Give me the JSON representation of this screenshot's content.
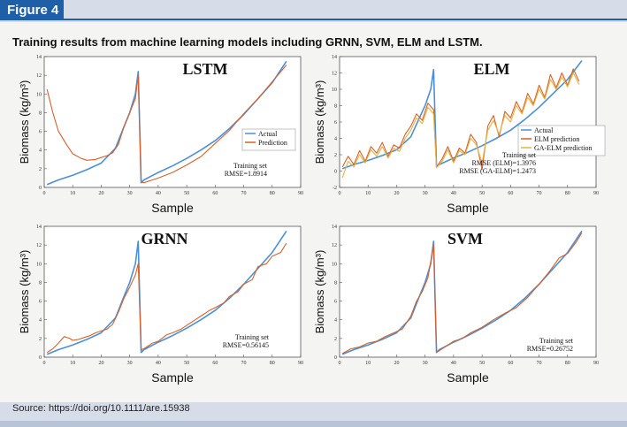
{
  "figure_label": "Figure 4",
  "caption": "Training results from machine learning models including GRNN, SVM, ELM and LSTM.",
  "source": "Source: https://doi.org/10.1111/are.15938",
  "colors": {
    "actual": "#4a90d9",
    "prediction": "#d8602a",
    "ga_elm": "#e8b23a",
    "accent": "#1f5fa8"
  },
  "chart_data": [
    {
      "type": "line",
      "title": "LSTM",
      "xlabel": "Sample",
      "ylabel": "Biomass (kg/m³)",
      "xlim": [
        0,
        90
      ],
      "ylim": [
        0,
        14
      ],
      "xticks": [
        "0",
        "10",
        "20",
        "30",
        "40",
        "50",
        "60",
        "70",
        "80",
        "90"
      ],
      "yticks": [
        "0",
        "2",
        "4",
        "6",
        "8",
        "10",
        "12",
        "14"
      ],
      "legend": [
        "Actual",
        "Prediction"
      ],
      "annotation": [
        "Training set",
        "RMSE=1.8914"
      ],
      "series": [
        {
          "name": "Actual",
          "x": [
            1,
            5,
            10,
            15,
            20,
            25,
            28,
            30,
            32,
            33,
            34,
            35,
            40,
            45,
            50,
            55,
            60,
            65,
            70,
            75,
            80,
            85
          ],
          "y": [
            0.3,
            0.8,
            1.3,
            1.9,
            2.6,
            4.2,
            6.5,
            8.0,
            10.0,
            12.4,
            0.5,
            0.8,
            1.6,
            2.3,
            3.1,
            4.0,
            5.0,
            6.3,
            7.8,
            9.5,
            11.2,
            13.5
          ]
        },
        {
          "name": "Prediction",
          "x": [
            1,
            3,
            5,
            8,
            10,
            13,
            15,
            18,
            20,
            22,
            24,
            26,
            28,
            30,
            32,
            33,
            34,
            35,
            38,
            40,
            45,
            50,
            55,
            60,
            65,
            70,
            75,
            80,
            85
          ],
          "y": [
            10.5,
            8.0,
            6.0,
            4.5,
            3.6,
            3.1,
            2.9,
            3.0,
            3.2,
            3.4,
            3.7,
            4.6,
            6.5,
            8.0,
            9.5,
            12.0,
            0.6,
            0.5,
            0.8,
            1.0,
            1.6,
            2.4,
            3.3,
            4.7,
            6.1,
            7.9,
            9.5,
            11.3,
            13.1
          ]
        }
      ]
    },
    {
      "type": "line",
      "title": "ELM",
      "xlabel": "Sample",
      "ylabel": "Biomass (kg/m³)",
      "xlim": [
        0,
        90
      ],
      "ylim": [
        -2,
        14
      ],
      "xticks": [
        "0",
        "10",
        "20",
        "30",
        "40",
        "50",
        "60",
        "70",
        "80",
        "90"
      ],
      "yticks": [
        "-2",
        "0",
        "2",
        "4",
        "6",
        "8",
        "10",
        "12",
        "14"
      ],
      "legend": [
        "Actual",
        "ELM prediction",
        "GA-ELM prediction"
      ],
      "annotation": [
        "Training set",
        "RMSE (ELM)=1.3976",
        "RMSE (GA-ELM)=1.2473"
      ],
      "series": [
        {
          "name": "Actual",
          "x": [
            1,
            5,
            10,
            15,
            20,
            25,
            28,
            30,
            32,
            33,
            34,
            35,
            40,
            45,
            50,
            55,
            60,
            65,
            70,
            75,
            80,
            85
          ],
          "y": [
            0.3,
            0.8,
            1.3,
            1.9,
            2.6,
            4.2,
            6.5,
            8.0,
            10.0,
            12.4,
            0.5,
            0.8,
            1.6,
            2.3,
            3.1,
            4.0,
            5.0,
            6.3,
            7.8,
            9.5,
            11.2,
            13.5
          ]
        },
        {
          "name": "ELM prediction",
          "x": [
            1,
            3,
            5,
            7,
            9,
            11,
            13,
            15,
            17,
            19,
            21,
            23,
            25,
            27,
            29,
            31,
            33,
            34,
            36,
            38,
            40,
            42,
            44,
            46,
            48,
            50,
            52,
            54,
            56,
            58,
            60,
            62,
            64,
            66,
            68,
            70,
            72,
            74,
            76,
            78,
            80,
            82,
            84
          ],
          "y": [
            0.5,
            1.8,
            0.8,
            2.5,
            1.2,
            3.0,
            2.2,
            3.5,
            1.8,
            3.2,
            2.8,
            4.5,
            5.5,
            7.0,
            6.2,
            8.3,
            7.5,
            0.5,
            1.5,
            3.0,
            1.2,
            2.8,
            2.2,
            4.5,
            3.5,
            0.2,
            5.5,
            6.8,
            4.2,
            7.3,
            6.5,
            8.5,
            7.2,
            9.5,
            8.2,
            10.5,
            9.0,
            11.8,
            10.2,
            12.0,
            10.5,
            12.5,
            11.0
          ]
        },
        {
          "name": "GA-ELM prediction",
          "x": [
            1,
            3,
            5,
            7,
            9,
            11,
            13,
            15,
            17,
            19,
            21,
            23,
            25,
            27,
            29,
            31,
            33,
            34,
            36,
            38,
            40,
            42,
            44,
            46,
            48,
            50,
            52,
            54,
            56,
            58,
            60,
            62,
            64,
            66,
            68,
            70,
            72,
            74,
            76,
            78,
            80,
            82,
            84
          ],
          "y": [
            -0.8,
            1.2,
            0.5,
            2.0,
            1.0,
            2.6,
            1.8,
            3.0,
            1.6,
            2.8,
            2.4,
            4.0,
            5.0,
            6.5,
            5.8,
            7.8,
            7.0,
            0.4,
            1.2,
            2.6,
            1.0,
            2.5,
            2.0,
            4.0,
            3.2,
            1.0,
            5.0,
            6.2,
            4.5,
            6.8,
            6.0,
            8.0,
            7.0,
            9.0,
            8.0,
            10.0,
            8.8,
            11.2,
            10.0,
            11.5,
            10.3,
            12.0,
            10.6
          ]
        }
      ]
    },
    {
      "type": "line",
      "title": "GRNN",
      "xlabel": "Sample",
      "ylabel": "Biomass (kg/m³)",
      "xlim": [
        0,
        90
      ],
      "ylim": [
        0,
        14
      ],
      "xticks": [
        "0",
        "10",
        "20",
        "30",
        "40",
        "50",
        "60",
        "70",
        "80",
        "90"
      ],
      "yticks": [
        "0",
        "2",
        "4",
        "6",
        "8",
        "10",
        "12",
        "14"
      ],
      "annotation": [
        "Training set",
        "RMSE=0.56145"
      ],
      "series": [
        {
          "name": "Actual",
          "x": [
            1,
            5,
            10,
            15,
            20,
            25,
            28,
            30,
            32,
            33,
            34,
            35,
            40,
            45,
            50,
            55,
            60,
            65,
            70,
            75,
            80,
            85
          ],
          "y": [
            0.3,
            0.8,
            1.3,
            1.9,
            2.6,
            4.2,
            6.5,
            8.0,
            10.0,
            12.4,
            0.5,
            0.8,
            1.6,
            2.3,
            3.1,
            4.0,
            5.0,
            6.3,
            7.8,
            9.5,
            11.2,
            13.5
          ]
        },
        {
          "name": "Prediction",
          "x": [
            1,
            3,
            5,
            7,
            9,
            10,
            12,
            14,
            16,
            18,
            20,
            22,
            24,
            26,
            28,
            30,
            32,
            33,
            34,
            35,
            38,
            40,
            43,
            45,
            48,
            50,
            53,
            55,
            58,
            60,
            63,
            65,
            68,
            70,
            73,
            75,
            78,
            80,
            83,
            85
          ],
          "y": [
            0.5,
            0.9,
            1.5,
            2.2,
            2.0,
            1.8,
            1.9,
            2.1,
            2.3,
            2.6,
            2.8,
            3.0,
            3.5,
            4.8,
            6.3,
            7.5,
            8.8,
            10.0,
            0.8,
            0.9,
            1.5,
            1.7,
            2.4,
            2.6,
            3.0,
            3.4,
            4.0,
            4.4,
            5.0,
            5.3,
            5.8,
            6.5,
            7.0,
            7.8,
            8.3,
            9.7,
            10.0,
            10.8,
            11.2,
            12.2
          ]
        }
      ]
    },
    {
      "type": "line",
      "title": "SVM",
      "xlabel": "Sample",
      "ylabel": "Biomass (kg/m³)",
      "xlim": [
        0,
        90
      ],
      "ylim": [
        0,
        14
      ],
      "xticks": [
        "0",
        "10",
        "20",
        "30",
        "40",
        "50",
        "60",
        "70",
        "80",
        "90"
      ],
      "yticks": [
        "0",
        "2",
        "4",
        "6",
        "8",
        "10",
        "12",
        "14"
      ],
      "annotation": [
        "Training set",
        "RMSE=0.26752"
      ],
      "series": [
        {
          "name": "Actual",
          "x": [
            1,
            5,
            10,
            15,
            20,
            25,
            28,
            30,
            32,
            33,
            34,
            35,
            40,
            45,
            50,
            55,
            60,
            65,
            70,
            75,
            80,
            85
          ],
          "y": [
            0.3,
            0.8,
            1.3,
            1.9,
            2.6,
            4.2,
            6.5,
            8.0,
            10.0,
            12.4,
            0.5,
            0.8,
            1.6,
            2.3,
            3.1,
            4.0,
            5.0,
            6.3,
            7.8,
            9.5,
            11.2,
            13.5
          ]
        },
        {
          "name": "Prediction",
          "x": [
            1,
            4,
            7,
            10,
            13,
            16,
            19,
            22,
            25,
            27,
            29,
            31,
            33,
            34,
            36,
            38,
            40,
            43,
            46,
            50,
            54,
            58,
            62,
            66,
            70,
            74,
            77,
            80,
            83,
            85
          ],
          "y": [
            0.4,
            0.9,
            1.1,
            1.5,
            1.7,
            2.2,
            2.6,
            3.0,
            4.4,
            6.0,
            7.0,
            8.5,
            12.0,
            0.5,
            0.9,
            1.3,
            1.7,
            2.0,
            2.6,
            3.2,
            4.0,
            4.7,
            5.3,
            6.4,
            7.8,
            9.3,
            10.6,
            11.1,
            12.3,
            13.3
          ]
        }
      ]
    }
  ]
}
